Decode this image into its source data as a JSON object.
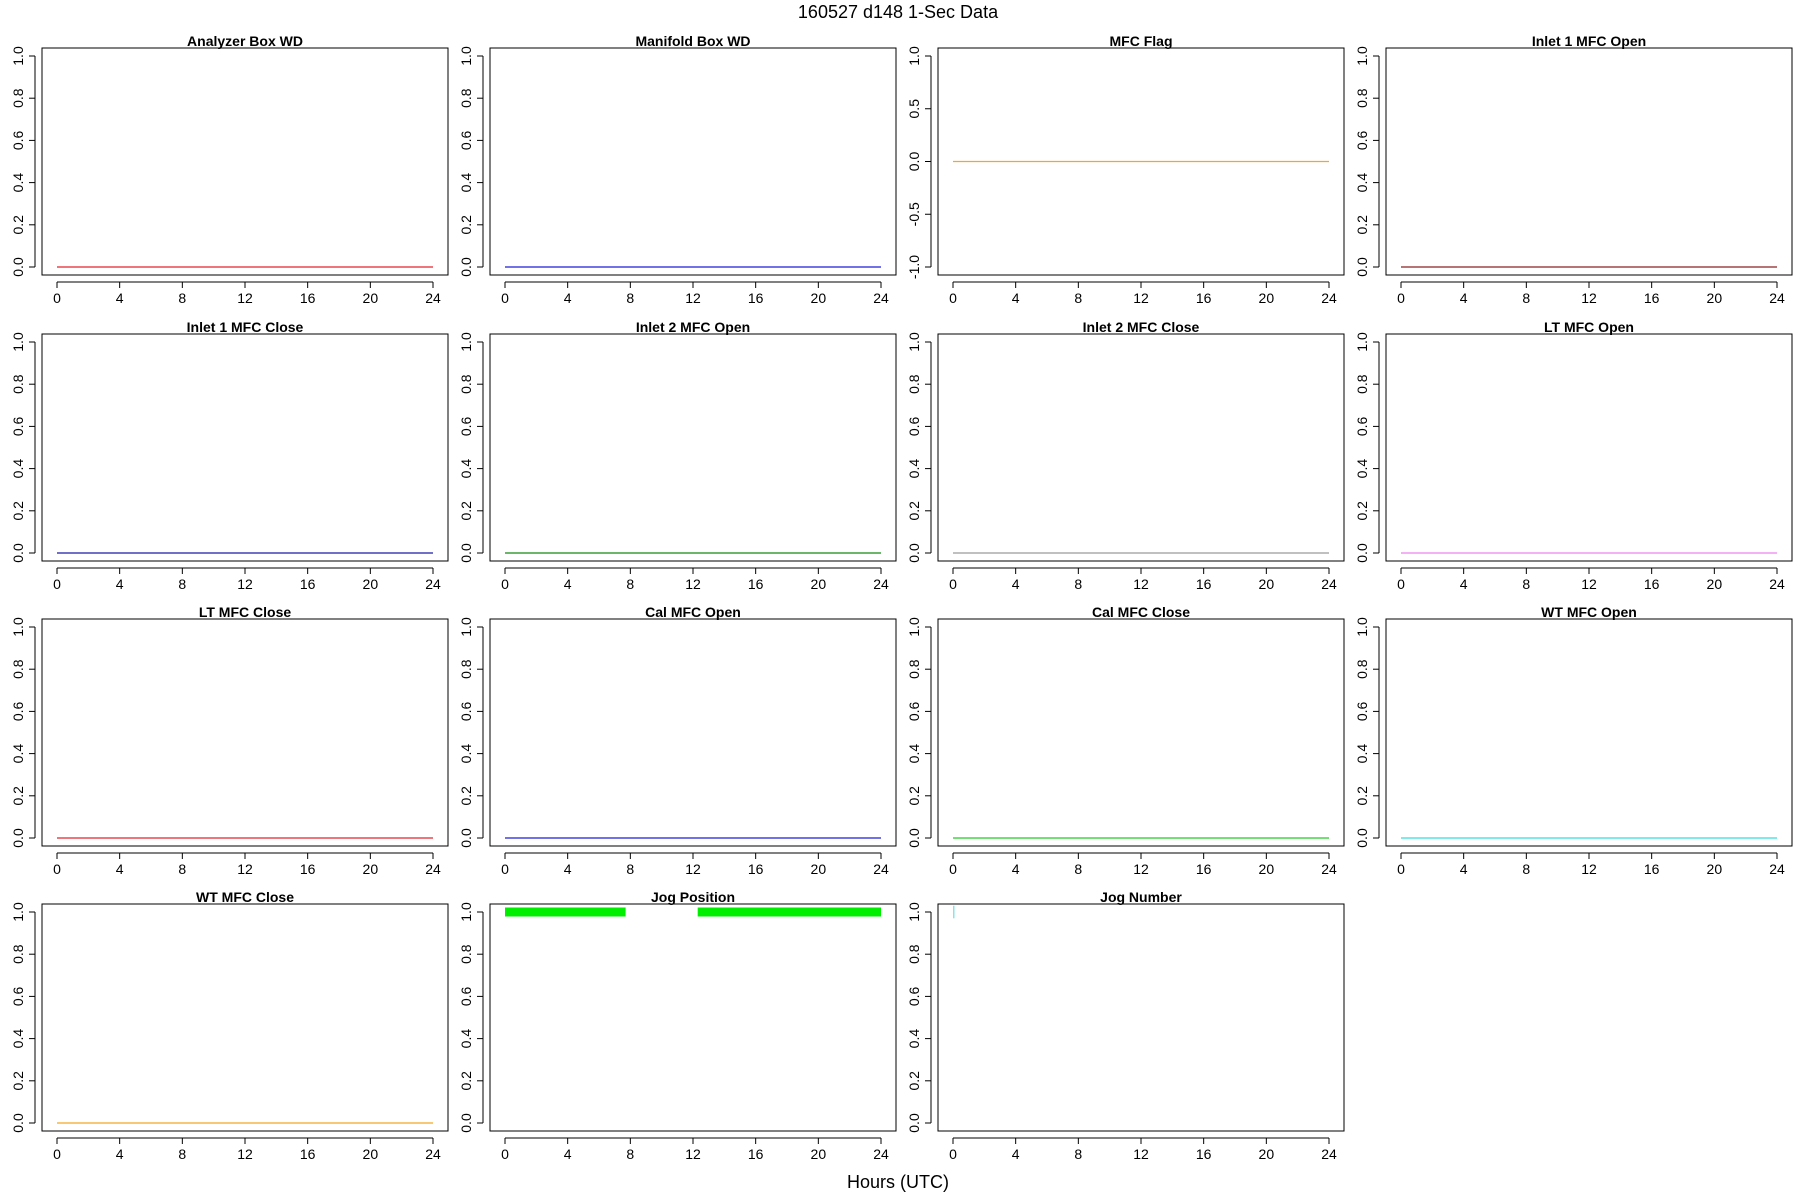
{
  "figure": {
    "title": "160527   d148   1-Sec Data",
    "xlabel": "Hours (UTC)"
  },
  "chart_data": [
    {
      "type": "line",
      "title": "Analyzer Box WD",
      "color": "#e8232a",
      "xlim": [
        0,
        24
      ],
      "ylim": [
        0,
        1
      ],
      "xticks": [
        0,
        4,
        8,
        12,
        16,
        20,
        24
      ],
      "yticks": [
        0.0,
        0.2,
        0.4,
        0.6,
        0.8,
        1.0
      ],
      "series": [
        {
          "x": [
            0,
            24
          ],
          "y": [
            0,
            0
          ]
        }
      ]
    },
    {
      "type": "line",
      "title": "Manifold Box WD",
      "color": "#1f1fd6",
      "xlim": [
        0,
        24
      ],
      "ylim": [
        0,
        1
      ],
      "xticks": [
        0,
        4,
        8,
        12,
        16,
        20,
        24
      ],
      "yticks": [
        0.0,
        0.2,
        0.4,
        0.6,
        0.8,
        1.0
      ],
      "series": [
        {
          "x": [
            0,
            24
          ],
          "y": [
            0,
            0
          ]
        }
      ]
    },
    {
      "type": "line",
      "title": "MFC Flag",
      "color": "#f5a623",
      "xlim": [
        0,
        24
      ],
      "ylim": [
        -1,
        1
      ],
      "xticks": [
        0,
        4,
        8,
        12,
        16,
        20,
        24
      ],
      "yticks": [
        -1.0,
        -0.5,
        0.0,
        0.5,
        1.0
      ],
      "series": [
        {
          "x": [
            0,
            24
          ],
          "y": [
            0,
            0
          ]
        }
      ]
    },
    {
      "type": "line",
      "title": "Inlet 1 MFC Open",
      "color": "#8b2020",
      "xlim": [
        0,
        24
      ],
      "ylim": [
        0,
        1
      ],
      "xticks": [
        0,
        4,
        8,
        12,
        16,
        20,
        24
      ],
      "yticks": [
        0.0,
        0.2,
        0.4,
        0.6,
        0.8,
        1.0
      ],
      "series": [
        {
          "x": [
            0,
            24
          ],
          "y": [
            0,
            0
          ]
        }
      ]
    },
    {
      "type": "line",
      "title": "Inlet 1 MFC Close",
      "color": "#1a1aa8",
      "xlim": [
        0,
        24
      ],
      "ylim": [
        0,
        1
      ],
      "xticks": [
        0,
        4,
        8,
        12,
        16,
        20,
        24
      ],
      "yticks": [
        0.0,
        0.2,
        0.4,
        0.6,
        0.8,
        1.0
      ],
      "series": [
        {
          "x": [
            0,
            24
          ],
          "y": [
            0,
            0
          ]
        }
      ]
    },
    {
      "type": "line",
      "title": "Inlet 2 MFC Open",
      "color": "#138a13",
      "xlim": [
        0,
        24
      ],
      "ylim": [
        0,
        1
      ],
      "xticks": [
        0,
        4,
        8,
        12,
        16,
        20,
        24
      ],
      "yticks": [
        0.0,
        0.2,
        0.4,
        0.6,
        0.8,
        1.0
      ],
      "series": [
        {
          "x": [
            0,
            24
          ],
          "y": [
            0,
            0
          ]
        }
      ]
    },
    {
      "type": "line",
      "title": "Inlet 2 MFC Close",
      "color": "#9a9a9a",
      "xlim": [
        0,
        24
      ],
      "ylim": [
        0,
        1
      ],
      "xticks": [
        0,
        4,
        8,
        12,
        16,
        20,
        24
      ],
      "yticks": [
        0.0,
        0.2,
        0.4,
        0.6,
        0.8,
        1.0
      ],
      "series": [
        {
          "x": [
            0,
            24
          ],
          "y": [
            0,
            0
          ]
        }
      ]
    },
    {
      "type": "line",
      "title": "LT MFC Open",
      "color": "#ee82ee",
      "xlim": [
        0,
        24
      ],
      "ylim": [
        0,
        1
      ],
      "xticks": [
        0,
        4,
        8,
        12,
        16,
        20,
        24
      ],
      "yticks": [
        0.0,
        0.2,
        0.4,
        0.6,
        0.8,
        1.0
      ],
      "series": [
        {
          "x": [
            0,
            24
          ],
          "y": [
            0,
            0
          ]
        }
      ]
    },
    {
      "type": "line",
      "title": "LT MFC Close",
      "color": "#e8232a",
      "xlim": [
        0,
        24
      ],
      "ylim": [
        0,
        1
      ],
      "xticks": [
        0,
        4,
        8,
        12,
        16,
        20,
        24
      ],
      "yticks": [
        0.0,
        0.2,
        0.4,
        0.6,
        0.8,
        1.0
      ],
      "series": [
        {
          "x": [
            0,
            24
          ],
          "y": [
            0,
            0
          ]
        }
      ]
    },
    {
      "type": "line",
      "title": "Cal MFC Open",
      "color": "#1f1fd6",
      "xlim": [
        0,
        24
      ],
      "ylim": [
        0,
        1
      ],
      "xticks": [
        0,
        4,
        8,
        12,
        16,
        20,
        24
      ],
      "yticks": [
        0.0,
        0.2,
        0.4,
        0.6,
        0.8,
        1.0
      ],
      "series": [
        {
          "x": [
            0,
            24
          ],
          "y": [
            0,
            0
          ]
        }
      ]
    },
    {
      "type": "line",
      "title": "Cal MFC Close",
      "color": "#22cc22",
      "xlim": [
        0,
        24
      ],
      "ylim": [
        0,
        1
      ],
      "xticks": [
        0,
        4,
        8,
        12,
        16,
        20,
        24
      ],
      "yticks": [
        0.0,
        0.2,
        0.4,
        0.6,
        0.8,
        1.0
      ],
      "series": [
        {
          "x": [
            0,
            24
          ],
          "y": [
            0,
            0
          ]
        }
      ]
    },
    {
      "type": "line",
      "title": "WT MFC Open",
      "color": "#33dddd",
      "xlim": [
        0,
        24
      ],
      "ylim": [
        0,
        1
      ],
      "xticks": [
        0,
        4,
        8,
        12,
        16,
        20,
        24
      ],
      "yticks": [
        0.0,
        0.2,
        0.4,
        0.6,
        0.8,
        1.0
      ],
      "series": [
        {
          "x": [
            0,
            24
          ],
          "y": [
            0,
            0
          ]
        }
      ]
    },
    {
      "type": "line",
      "title": "WT MFC Close",
      "color": "#f5a623",
      "xlim": [
        0,
        24
      ],
      "ylim": [
        0,
        1
      ],
      "xticks": [
        0,
        4,
        8,
        12,
        16,
        20,
        24
      ],
      "yticks": [
        0.0,
        0.2,
        0.4,
        0.6,
        0.8,
        1.0
      ],
      "series": [
        {
          "x": [
            0,
            24
          ],
          "y": [
            0,
            0
          ]
        }
      ]
    },
    {
      "type": "line",
      "title": "Jog Position",
      "color": "#00ee00",
      "thick": true,
      "xlim": [
        0,
        24
      ],
      "ylim": [
        0,
        1
      ],
      "xticks": [
        0,
        4,
        8,
        12,
        16,
        20,
        24
      ],
      "yticks": [
        0.0,
        0.2,
        0.4,
        0.6,
        0.8,
        1.0
      ],
      "series": [
        {
          "x": [
            0,
            7.7
          ],
          "y": [
            1,
            1
          ]
        },
        {
          "x": [
            12.3,
            24
          ],
          "y": [
            1,
            1
          ]
        }
      ]
    },
    {
      "type": "line",
      "title": "Jog Number",
      "color": "#66e0e0",
      "xlim": [
        0,
        24
      ],
      "ylim": [
        0,
        1
      ],
      "xticks": [
        0,
        4,
        8,
        12,
        16,
        20,
        24
      ],
      "yticks": [
        0.0,
        0.2,
        0.4,
        0.6,
        0.8,
        1.0
      ],
      "series": [
        {
          "x": [
            0.05,
            0.05
          ],
          "y": [
            0.97,
            1.03
          ]
        }
      ]
    }
  ]
}
